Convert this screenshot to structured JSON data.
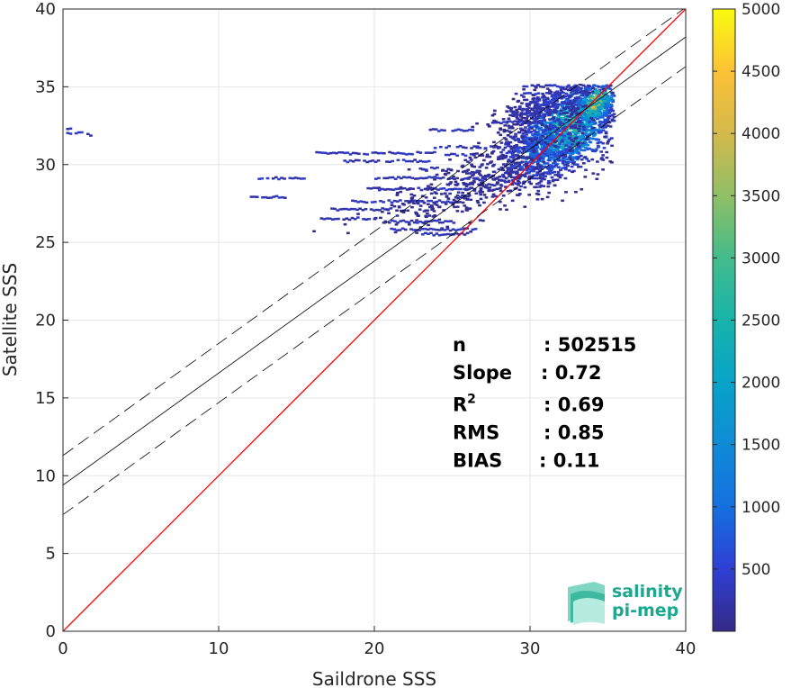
{
  "chart_data": {
    "type": "heatmap",
    "title": "",
    "xlabel": "Saildrone SSS",
    "ylabel": "Satellite SSS",
    "xlim": [
      0,
      40
    ],
    "ylim": [
      0,
      40
    ],
    "xticks": [
      "0",
      "10",
      "20",
      "30",
      "40"
    ],
    "yticks": [
      "0",
      "5",
      "10",
      "15",
      "20",
      "25",
      "30",
      "35",
      "40"
    ],
    "grid": true,
    "colorbar": {
      "colormap": "parula",
      "range": [
        0,
        5000
      ],
      "ticks": [
        "500",
        "1000",
        "1500",
        "2000",
        "2500",
        "3000",
        "3500",
        "4000",
        "4500",
        "5000"
      ]
    },
    "lines": [
      {
        "name": "1:1",
        "style": "solid",
        "color": "#ff0000",
        "x": [
          0,
          40
        ],
        "y": [
          0,
          40
        ]
      },
      {
        "name": "fit",
        "style": "solid",
        "color": "#000000",
        "x": [
          0,
          40
        ],
        "y": [
          9.4,
          38.2
        ]
      },
      {
        "name": "fit-upper",
        "style": "dashed",
        "color": "#000000",
        "x": [
          0,
          40
        ],
        "y": [
          11.3,
          40.1
        ]
      },
      {
        "name": "fit-lower",
        "style": "dashed",
        "color": "#000000",
        "x": [
          0,
          40
        ],
        "y": [
          7.5,
          36.3
        ]
      }
    ],
    "stats": [
      {
        "key": "n",
        "sup": "",
        "value": ": 502515"
      },
      {
        "key": "Slope",
        "sup": "",
        "value": ": 0.72"
      },
      {
        "key": "R",
        "sup": "2",
        "value": ": 0.69"
      },
      {
        "key": "RMS",
        "sup": "",
        "value": ": 0.85"
      },
      {
        "key": "BIAS",
        "sup": "",
        "value": ": 0.11"
      }
    ],
    "density_clusters": [
      {
        "x": 32.3,
        "y": 32.3,
        "sx": 1.6,
        "sy": 1.5,
        "count": 1400,
        "peak": 0.55
      },
      {
        "x": 34.1,
        "y": 34.0,
        "sx": 0.7,
        "sy": 0.7,
        "count": 320,
        "peak": 0.8
      },
      {
        "x": 30.5,
        "y": 31.0,
        "sx": 1.6,
        "sy": 1.4,
        "count": 500,
        "peak": 0.2
      },
      {
        "x": 31.5,
        "y": 34.2,
        "sx": 1.8,
        "sy": 0.6,
        "count": 300,
        "peak": 0.1
      },
      {
        "x": 27.0,
        "y": 29.3,
        "sx": 2.5,
        "sy": 1.2,
        "count": 260,
        "peak": 0.05
      },
      {
        "x": 24.0,
        "y": 27.8,
        "sx": 2.8,
        "sy": 1.0,
        "count": 140,
        "peak": 0.03
      }
    ],
    "density_streaks": [
      {
        "x0": 0.2,
        "x1": 1.3,
        "y": 32.1
      },
      {
        "x0": 1.5,
        "x1": 2.2,
        "y": 32.0
      },
      {
        "x0": 0.2,
        "x1": 0.5,
        "y": 32.4
      },
      {
        "x0": 12.5,
        "x1": 15.5,
        "y": 29.2
      },
      {
        "x0": 12.0,
        "x1": 14.3,
        "y": 28.0
      },
      {
        "x0": 16.2,
        "x1": 24.0,
        "y": 30.8
      },
      {
        "x0": 18.0,
        "x1": 23.5,
        "y": 30.3
      },
      {
        "x0": 20.0,
        "x1": 27.5,
        "y": 29.2
      },
      {
        "x0": 19.5,
        "x1": 26.5,
        "y": 28.5
      },
      {
        "x0": 18.5,
        "x1": 25.0,
        "y": 27.7
      },
      {
        "x0": 17.0,
        "x1": 21.0,
        "y": 27.2
      },
      {
        "x0": 16.5,
        "x1": 20.0,
        "y": 26.6
      },
      {
        "x0": 20.5,
        "x1": 25.0,
        "y": 26.4
      },
      {
        "x0": 21.0,
        "x1": 26.5,
        "y": 25.9
      },
      {
        "x0": 23.0,
        "x1": 26.0,
        "y": 25.6
      },
      {
        "x0": 23.8,
        "x1": 29.2,
        "y": 31.2
      },
      {
        "x0": 24.5,
        "x1": 27.0,
        "y": 30.7
      },
      {
        "x0": 29.5,
        "x1": 32.5,
        "y": 35.1
      },
      {
        "x0": 29.0,
        "x1": 31.2,
        "y": 34.6
      },
      {
        "x0": 28.8,
        "x1": 31.0,
        "y": 33.4
      },
      {
        "x0": 27.5,
        "x1": 30.5,
        "y": 32.8
      },
      {
        "x0": 23.5,
        "x1": 26.5,
        "y": 32.3
      },
      {
        "x0": 22.5,
        "x1": 24.5,
        "y": 29.8
      }
    ]
  },
  "logo": {
    "line1": "salinity",
    "line2": "pi-mep"
  }
}
